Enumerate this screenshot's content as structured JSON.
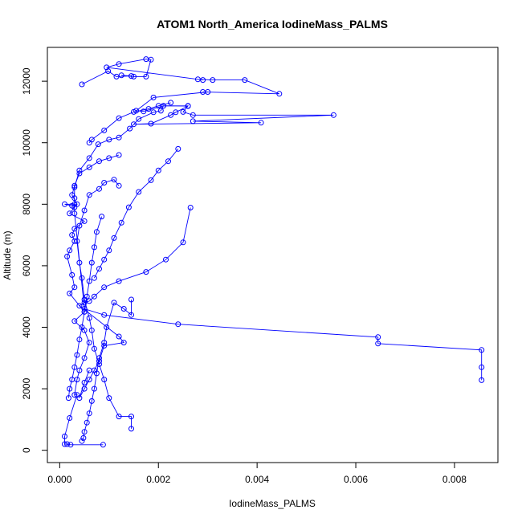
{
  "chart_data": {
    "type": "line",
    "title": "ATOM1 North_America IodineMass_PALMS",
    "xlabel": "IodineMass_PALMS",
    "ylabel": "Altitude (m)",
    "xlim": [
      -0.00025,
      0.00888
    ],
    "ylim": [
      -400,
      13100
    ],
    "x_ticks": [
      0.0,
      0.002,
      0.004,
      0.006,
      0.008
    ],
    "x_tick_labels": [
      "0.000",
      "0.002",
      "0.004",
      "0.006",
      "0.008"
    ],
    "y_ticks": [
      0,
      2000,
      4000,
      6000,
      8000,
      10000,
      12000
    ],
    "y_tick_labels": [
      "0",
      "2000",
      "4000",
      "6000",
      "8000",
      "10000",
      "12000"
    ],
    "grid": false,
    "series": [
      {
        "color": "#0000ff",
        "points": [
          [
            0.00045,
            11900
          ],
          [
            0.00098,
            12330
          ],
          [
            0.00115,
            12150
          ],
          [
            0.00145,
            12170
          ],
          [
            0.00125,
            12190
          ],
          [
            0.0015,
            12150
          ],
          [
            0.00175,
            12150
          ],
          [
            0.00185,
            12700
          ],
          [
            0.00175,
            12720
          ],
          [
            0.0012,
            12560
          ],
          [
            0.00095,
            12450
          ],
          [
            0.0029,
            12040
          ],
          [
            0.0028,
            12060
          ],
          [
            0.0031,
            12040
          ],
          [
            0.00375,
            12040
          ],
          [
            0.00445,
            11590
          ],
          [
            0.0029,
            11650
          ],
          [
            0.003,
            11650
          ],
          [
            0.0019,
            11470
          ],
          [
            0.00155,
            11040
          ],
          [
            0.0017,
            11020
          ],
          [
            0.0021,
            11200
          ],
          [
            0.0026,
            11200
          ],
          [
            0.0025,
            11000
          ],
          [
            0.0027,
            10900
          ],
          [
            0.00555,
            10900
          ],
          [
            0.0027,
            10700
          ],
          [
            0.00408,
            10650
          ],
          [
            0.0015,
            10600
          ],
          [
            0.00185,
            10620
          ],
          [
            0.00225,
            10900
          ],
          [
            0.00235,
            10990
          ],
          [
            0.0026,
            11190
          ],
          [
            0.0021,
            11200
          ],
          [
            0.00205,
            11040
          ],
          [
            0.0019,
            10990
          ],
          [
            0.0016,
            10770
          ],
          [
            0.00142,
            10460
          ],
          [
            0.0012,
            10170
          ],
          [
            0.001,
            10100
          ],
          [
            0.00078,
            9950
          ],
          [
            0.0006,
            9500
          ],
          [
            0.0004,
            9100
          ],
          [
            0.0003,
            8550
          ],
          [
            0.0003,
            8200
          ],
          [
            0.0003,
            7900
          ],
          [
            0.0002,
            7700
          ],
          [
            0.0005,
            7450
          ],
          [
            0.0003,
            7200
          ],
          [
            0.00025,
            7000
          ],
          [
            0.0003,
            6800
          ],
          [
            0.0002,
            6500
          ],
          [
            0.00015,
            6300
          ],
          [
            0.00025,
            5700
          ],
          [
            0.0003,
            5300
          ],
          [
            0.0002,
            5100
          ],
          [
            0.0005,
            4500
          ],
          [
            0.0003,
            4200
          ],
          [
            0.0005,
            3900
          ],
          [
            0.0006,
            3500
          ],
          [
            0.0005,
            3000
          ],
          [
            0.0004,
            2600
          ],
          [
            0.00035,
            2300
          ],
          [
            0.0003,
            1800
          ],
          [
            0.00035,
            1800
          ],
          [
            0.0002,
            1050
          ],
          [
            0.0001,
            450
          ],
          [
            0.0001,
            200
          ],
          [
            0.00015,
            200
          ],
          [
            0.00022,
            180
          ],
          [
            0.00088,
            180
          ]
        ]
      },
      {
        "color": "#0000ff",
        "points": [
          [
            0.00855,
            2280
          ],
          [
            0.00855,
            2700
          ],
          [
            0.00855,
            3260
          ],
          [
            0.00645,
            3470
          ],
          [
            0.00645,
            3680
          ],
          [
            0.0024,
            4100
          ],
          [
            0.0009,
            4400
          ],
          [
            0.0005,
            4600
          ],
          [
            0.0003,
            7700
          ],
          [
            0.0003,
            8000
          ],
          [
            0.0001,
            8000
          ],
          [
            0.00025,
            7950
          ],
          [
            0.00035,
            8000
          ],
          [
            0.00025,
            8300
          ],
          [
            0.0003,
            8600
          ],
          [
            0.0004,
            9000
          ],
          [
            0.0006,
            9200
          ],
          [
            0.0008,
            9400
          ],
          [
            0.001,
            9500
          ],
          [
            0.0012,
            9600
          ]
        ]
      },
      {
        "color": "#0000ff",
        "points": [
          [
            0.00265,
            7890
          ],
          [
            0.0025,
            6760
          ],
          [
            0.00215,
            6200
          ],
          [
            0.00175,
            5800
          ],
          [
            0.0012,
            5500
          ],
          [
            0.0009,
            5300
          ],
          [
            0.0007,
            5000
          ],
          [
            0.0006,
            4850
          ],
          [
            0.0005,
            4800
          ],
          [
            0.0004,
            4700
          ],
          [
            0.0012,
            3700
          ],
          [
            0.0013,
            3500
          ],
          [
            0.0009,
            3400
          ],
          [
            0.0008,
            2900
          ],
          [
            0.0007,
            2600
          ],
          [
            0.0006,
            2300
          ],
          [
            0.0005,
            2000
          ],
          [
            0.0004,
            1700
          ],
          [
            0.0005,
            2200
          ],
          [
            0.0006,
            2600
          ]
        ]
      },
      {
        "color": "#0000ff",
        "points": [
          [
            0.00145,
            700
          ],
          [
            0.00145,
            1100
          ],
          [
            0.0012,
            1100
          ],
          [
            0.001,
            1700
          ],
          [
            0.0009,
            2300
          ],
          [
            0.0008,
            2800
          ],
          [
            0.0007,
            3300
          ],
          [
            0.00065,
            3900
          ],
          [
            0.0006,
            4300
          ],
          [
            0.0005,
            4900
          ],
          [
            0.00045,
            5600
          ],
          [
            0.0004,
            6100
          ],
          [
            0.00035,
            6800
          ],
          [
            0.0004,
            7300
          ],
          [
            0.0005,
            7800
          ],
          [
            0.0006,
            8300
          ],
          [
            0.0008,
            8500
          ],
          [
            0.0009,
            8700
          ],
          [
            0.0011,
            8800
          ],
          [
            0.0012,
            8600
          ]
        ]
      },
      {
        "color": "#0000ff",
        "points": [
          [
            0.00145,
            4900
          ],
          [
            0.00145,
            4400
          ],
          [
            0.0013,
            4600
          ],
          [
            0.0011,
            4800
          ],
          [
            0.00095,
            4000
          ],
          [
            0.0009,
            3500
          ],
          [
            0.0008,
            3000
          ],
          [
            0.00075,
            2500
          ],
          [
            0.0007,
            2000
          ],
          [
            0.00065,
            1600
          ],
          [
            0.0006,
            1200
          ],
          [
            0.00055,
            900
          ],
          [
            0.0005,
            600
          ],
          [
            0.00048,
            400
          ],
          [
            0.00045,
            300
          ]
        ]
      },
      {
        "color": "#0000ff",
        "points": [
          [
            0.00085,
            7600
          ],
          [
            0.00075,
            7100
          ],
          [
            0.0007,
            6600
          ],
          [
            0.00065,
            6100
          ],
          [
            0.0006,
            5500
          ],
          [
            0.00055,
            5000
          ],
          [
            0.0005,
            4500
          ],
          [
            0.00045,
            4000
          ],
          [
            0.0004,
            3600
          ],
          [
            0.00035,
            3100
          ],
          [
            0.0003,
            2700
          ],
          [
            0.00025,
            2300
          ],
          [
            0.0002,
            2000
          ],
          [
            0.00018,
            1700
          ]
        ]
      },
      {
        "color": "#0000ff",
        "points": [
          [
            0.0024,
            9800
          ],
          [
            0.0022,
            9400
          ],
          [
            0.002,
            9100
          ],
          [
            0.00185,
            8780
          ],
          [
            0.0016,
            8400
          ],
          [
            0.0014,
            7900
          ],
          [
            0.00125,
            7400
          ],
          [
            0.0011,
            6900
          ],
          [
            0.001,
            6500
          ],
          [
            0.0009,
            6200
          ],
          [
            0.0008,
            5900
          ],
          [
            0.0007,
            5600
          ]
        ]
      },
      {
        "color": "#0000ff",
        "points": [
          [
            0.0006,
            10000
          ],
          [
            0.00065,
            10100
          ],
          [
            0.0009,
            10400
          ],
          [
            0.0012,
            10800
          ],
          [
            0.0015,
            11000
          ],
          [
            0.0018,
            11100
          ],
          [
            0.002,
            11200
          ],
          [
            0.00225,
            11300
          ]
        ]
      }
    ]
  }
}
